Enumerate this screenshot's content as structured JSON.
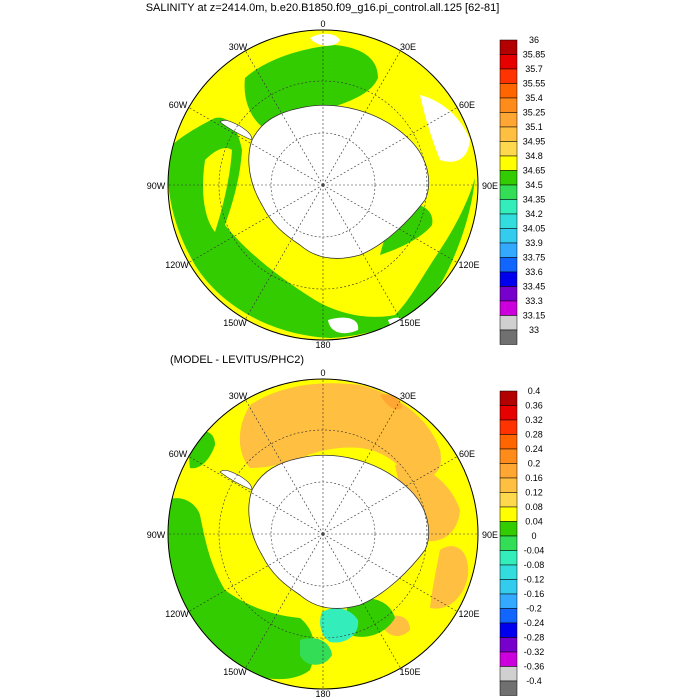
{
  "top": {
    "title": "SALINITY at z=2414.0m, b.e20.B1850.f09_g16.pi_control.all.125 [62-81]",
    "labels": {
      "lon0": "0",
      "lon30e": "30E",
      "lon60e": "60E",
      "lon90e": "90E",
      "lon120e": "120E",
      "lon150e": "150E",
      "lon180": "180",
      "lon150w": "150W",
      "lon120w": "120W",
      "lon90w": "90W",
      "lon60w": "60W",
      "lon30w": "30W"
    },
    "colorbar": {
      "labels": [
        "36",
        "35.85",
        "35.7",
        "35.55",
        "35.4",
        "35.25",
        "35.1",
        "34.95",
        "34.8",
        "34.65",
        "34.5",
        "34.35",
        "34.2",
        "34.05",
        "33.9",
        "33.75",
        "33.6",
        "33.45",
        "33.3",
        "33.15",
        "33"
      ],
      "colors": [
        "#b30000",
        "#e60000",
        "#ff3300",
        "#ff6600",
        "#ff8c1a",
        "#ffa633",
        "#ffbf40",
        "#ffd94d",
        "#ffff00",
        "#33cc00",
        "#33dd55",
        "#33eebb",
        "#33dddd",
        "#33ccee",
        "#33aaff",
        "#1166ff",
        "#0000ee",
        "#7700cc",
        "#cc00dd",
        "#d0d0d0",
        "#707070"
      ]
    }
  },
  "bottom": {
    "title": "(MODEL - LEVITUS/PHC2)",
    "labels": {
      "lon0": "0",
      "lon30e": "30E",
      "lon60e": "60E",
      "lon90e": "90E",
      "lon120e": "120E",
      "lon150e": "150E",
      "lon180": "180",
      "lon150w": "150W",
      "lon120w": "120W",
      "lon90w": "90W",
      "lon60w": "60W",
      "lon30w": "30W"
    },
    "colorbar": {
      "labels": [
        "0.4",
        "0.36",
        "0.32",
        "0.28",
        "0.24",
        "0.2",
        "0.16",
        "0.12",
        "0.08",
        "0.04",
        "0",
        "-0.04",
        "-0.08",
        "-0.12",
        "-0.16",
        "-0.2",
        "-0.24",
        "-0.28",
        "-0.32",
        "-0.36",
        "-0.4"
      ],
      "colors": [
        "#b30000",
        "#e60000",
        "#ff3300",
        "#ff6600",
        "#ff8c1a",
        "#ffa633",
        "#ffbf40",
        "#ffd94d",
        "#ffff00",
        "#33cc00",
        "#33dd55",
        "#33eebb",
        "#33dddd",
        "#33ccee",
        "#33aaff",
        "#1166ff",
        "#0000ee",
        "#7700cc",
        "#cc00dd",
        "#d0d0d0",
        "#707070"
      ]
    }
  }
}
